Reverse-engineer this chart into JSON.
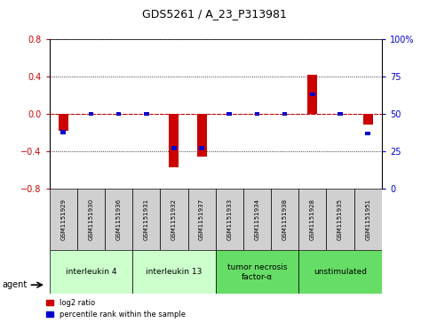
{
  "title": "GDS5261 / A_23_P313981",
  "samples": [
    "GSM1151929",
    "GSM1151930",
    "GSM1151936",
    "GSM1151931",
    "GSM1151932",
    "GSM1151937",
    "GSM1151933",
    "GSM1151934",
    "GSM1151938",
    "GSM1151928",
    "GSM1151935",
    "GSM1151951"
  ],
  "log2_ratio": [
    -0.18,
    0.0,
    0.0,
    0.0,
    -0.57,
    -0.46,
    0.0,
    0.0,
    0.0,
    0.42,
    0.0,
    -0.11
  ],
  "percentile_rank": [
    38,
    50,
    50,
    50,
    27,
    27,
    50,
    50,
    50,
    63,
    50,
    37
  ],
  "groups": [
    {
      "label": "interleukin 4",
      "indices": [
        0,
        1,
        2
      ],
      "color": "#ccffcc"
    },
    {
      "label": "interleukin 13",
      "indices": [
        3,
        4,
        5
      ],
      "color": "#ccffcc"
    },
    {
      "label": "tumor necrosis\nfactor-α",
      "indices": [
        6,
        7,
        8
      ],
      "color": "#66dd66"
    },
    {
      "label": "unstimulated",
      "indices": [
        9,
        10,
        11
      ],
      "color": "#66dd66"
    }
  ],
  "ylim_left": [
    -0.8,
    0.8
  ],
  "ylim_right": [
    0,
    100
  ],
  "yticks_left": [
    -0.8,
    -0.4,
    0.0,
    0.4,
    0.8
  ],
  "yticks_right": [
    0,
    25,
    50,
    75,
    100
  ],
  "red_color": "#cc0000",
  "blue_color": "#0000cc",
  "legend_red_label": "log2 ratio",
  "legend_blue_label": "percentile rank within the sample",
  "sample_box_color": "#d0d0d0"
}
